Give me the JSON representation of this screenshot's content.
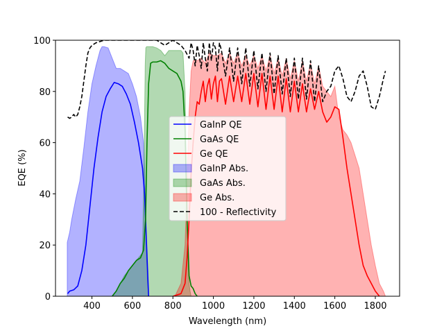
{
  "chart_data": {
    "type": "area",
    "xlabel": "Wavelength (nm)",
    "ylabel": "EQE (%)",
    "xlim": [
      220,
      1920
    ],
    "ylim": [
      0,
      100
    ],
    "xticks": [
      400,
      600,
      800,
      1000,
      1200,
      1400,
      1600,
      1800
    ],
    "yticks": [
      0,
      20,
      40,
      60,
      80,
      100
    ],
    "legend_position": "center",
    "series": [
      {
        "name": "GaInP QE",
        "kind": "line",
        "color": "#0000ff",
        "dash": "",
        "x": [
          280,
          290,
          310,
          330,
          350,
          370,
          390,
          410,
          430,
          450,
          470,
          490,
          510,
          530,
          550,
          570,
          590,
          610,
          630,
          650,
          660,
          670,
          680
        ],
        "y": [
          1,
          2,
          2.5,
          4,
          10,
          20,
          35,
          50,
          62,
          72,
          78,
          81,
          83.5,
          83,
          82,
          79,
          75,
          68,
          60,
          50,
          40,
          20,
          0
        ]
      },
      {
        "name": "GaAs QE",
        "kind": "line",
        "color": "#008000",
        "dash": "",
        "x": [
          500,
          520,
          540,
          560,
          580,
          600,
          620,
          640,
          655,
          665,
          672,
          680,
          690,
          700,
          720,
          740,
          760,
          780,
          800,
          820,
          840,
          850,
          860,
          870,
          880,
          890,
          900,
          910,
          920
        ],
        "y": [
          0,
          2,
          5,
          7,
          10,
          12,
          14,
          15,
          18,
          30,
          60,
          83,
          91,
          91.5,
          91.5,
          92,
          91,
          89,
          88,
          87,
          84,
          80,
          65,
          30,
          8,
          4,
          3,
          1,
          0
        ]
      },
      {
        "name": "Ge QE",
        "kind": "line",
        "color": "#ff0000",
        "dash": "",
        "x": [
          800,
          840,
          860,
          870,
          880,
          890,
          900,
          910,
          920,
          930,
          940,
          950,
          960,
          970,
          980,
          990,
          1000,
          1010,
          1020,
          1030,
          1040,
          1060,
          1080,
          1100,
          1120,
          1140,
          1160,
          1180,
          1200,
          1220,
          1240,
          1260,
          1280,
          1300,
          1320,
          1340,
          1360,
          1380,
          1400,
          1420,
          1440,
          1460,
          1480,
          1500,
          1520,
          1540,
          1560,
          1580,
          1600,
          1620,
          1640,
          1660,
          1680,
          1700,
          1720,
          1740,
          1760,
          1780,
          1800,
          1820
        ],
        "y": [
          0,
          1,
          5,
          15,
          30,
          48,
          60,
          70,
          76,
          75,
          80,
          84,
          76,
          82,
          85,
          77,
          83,
          86,
          76,
          84,
          85,
          75,
          86,
          76,
          86,
          76,
          87,
          75,
          87,
          74,
          87,
          73,
          86,
          73,
          86,
          72,
          85,
          72,
          84,
          72,
          83,
          72,
          81,
          73,
          80,
          72,
          68,
          70,
          74,
          73,
          62,
          50,
          40,
          30,
          20,
          12,
          8,
          5,
          2,
          0
        ]
      },
      {
        "name": "GaInP Abs.",
        "kind": "area",
        "color": "#0000ff",
        "opacity": 0.3,
        "x": [
          278,
          290,
          300,
          320,
          340,
          360,
          380,
          400,
          420,
          440,
          450,
          460,
          480,
          500,
          520,
          540,
          560,
          580,
          600,
          620,
          640,
          655,
          660,
          665,
          670,
          675,
          680
        ],
        "y": [
          21,
          25,
          30,
          38,
          45,
          58,
          72,
          83,
          90,
          96,
          97.5,
          97.5,
          97,
          93,
          89,
          89,
          88,
          87,
          83,
          78,
          70,
          60,
          50,
          35,
          15,
          5,
          0
        ]
      },
      {
        "name": "GaAs Abs.",
        "kind": "area",
        "color": "#008000",
        "opacity": 0.3,
        "x": [
          500,
          520,
          540,
          560,
          580,
          600,
          620,
          640,
          650,
          655,
          660,
          663,
          666,
          670,
          680,
          700,
          720,
          740,
          760,
          780,
          800,
          820,
          840,
          850,
          860,
          870,
          875,
          880,
          885,
          890
        ],
        "y": [
          0,
          2,
          5,
          8,
          10,
          12,
          14,
          16,
          17,
          40,
          70,
          90,
          97,
          97.5,
          97.5,
          97.5,
          97,
          96,
          94,
          96,
          96,
          96,
          96,
          95,
          80,
          40,
          15,
          5,
          2,
          0
        ]
      },
      {
        "name": "Ge Abs.",
        "kind": "area",
        "color": "#ff0000",
        "opacity": 0.3,
        "x": [
          810,
          840,
          860,
          870,
          880,
          890,
          900,
          920,
          940,
          960,
          980,
          1000,
          1020,
          1040,
          1060,
          1080,
          1100,
          1120,
          1140,
          1160,
          1180,
          1200,
          1220,
          1240,
          1260,
          1280,
          1300,
          1320,
          1340,
          1360,
          1380,
          1400,
          1420,
          1440,
          1460,
          1480,
          1500,
          1520,
          1540,
          1560,
          1580,
          1600,
          1620,
          1640,
          1660,
          1680,
          1700,
          1720,
          1740,
          1760,
          1780,
          1800,
          1820,
          1840,
          1850
        ],
        "y": [
          0,
          5,
          20,
          45,
          72,
          88,
          92,
          92,
          93,
          91,
          95,
          94,
          94,
          95,
          91,
          95,
          91,
          95,
          90,
          94,
          90,
          94,
          89,
          94,
          88,
          94,
          87,
          93,
          86,
          93,
          85,
          92,
          84,
          92,
          84,
          91,
          83,
          90,
          82,
          80,
          78,
          82,
          70,
          65,
          63,
          60,
          55,
          50,
          40,
          30,
          20,
          12,
          5,
          2,
          0
        ]
      },
      {
        "name": "100 - Reflectivity",
        "kind": "line",
        "color": "#000000",
        "dash": "6,3",
        "x": [
          280,
          290,
          300,
          310,
          320,
          330,
          340,
          350,
          360,
          370,
          380,
          390,
          400,
          420,
          440,
          460,
          480,
          500,
          520,
          540,
          560,
          580,
          600,
          620,
          640,
          660,
          680,
          700,
          720,
          740,
          760,
          780,
          800,
          820,
          840,
          860,
          880,
          890,
          900,
          910,
          920,
          930,
          940,
          950,
          960,
          970,
          980,
          990,
          1000,
          1010,
          1020,
          1030,
          1040,
          1060,
          1080,
          1100,
          1120,
          1140,
          1160,
          1180,
          1200,
          1220,
          1240,
          1260,
          1280,
          1300,
          1320,
          1340,
          1360,
          1380,
          1400,
          1420,
          1440,
          1460,
          1480,
          1500,
          1520,
          1540,
          1560,
          1580,
          1600,
          1620,
          1640,
          1660,
          1680,
          1700,
          1720,
          1740,
          1760,
          1780,
          1800,
          1820,
          1840,
          1850
        ],
        "y": [
          70,
          69.5,
          70,
          71,
          70,
          71,
          74,
          78,
          84,
          90,
          95,
          97,
          98,
          99,
          99.5,
          100,
          100,
          100,
          100,
          100,
          100,
          100,
          100,
          100,
          100,
          100,
          100,
          100,
          100,
          99,
          98,
          99,
          100,
          99,
          98,
          96,
          93,
          99,
          96,
          90,
          98,
          94,
          89,
          99,
          93,
          88,
          99,
          92,
          99,
          97,
          88,
          99,
          96,
          86,
          97,
          84,
          97,
          83,
          97,
          82,
          96,
          81,
          95,
          80,
          95,
          79,
          94,
          79,
          93,
          78,
          93,
          77,
          93,
          77,
          92,
          76,
          90,
          76,
          80,
          82,
          88,
          90,
          85,
          78,
          76,
          80,
          86,
          88,
          82,
          74,
          73,
          78,
          85,
          88
        ]
      }
    ]
  }
}
